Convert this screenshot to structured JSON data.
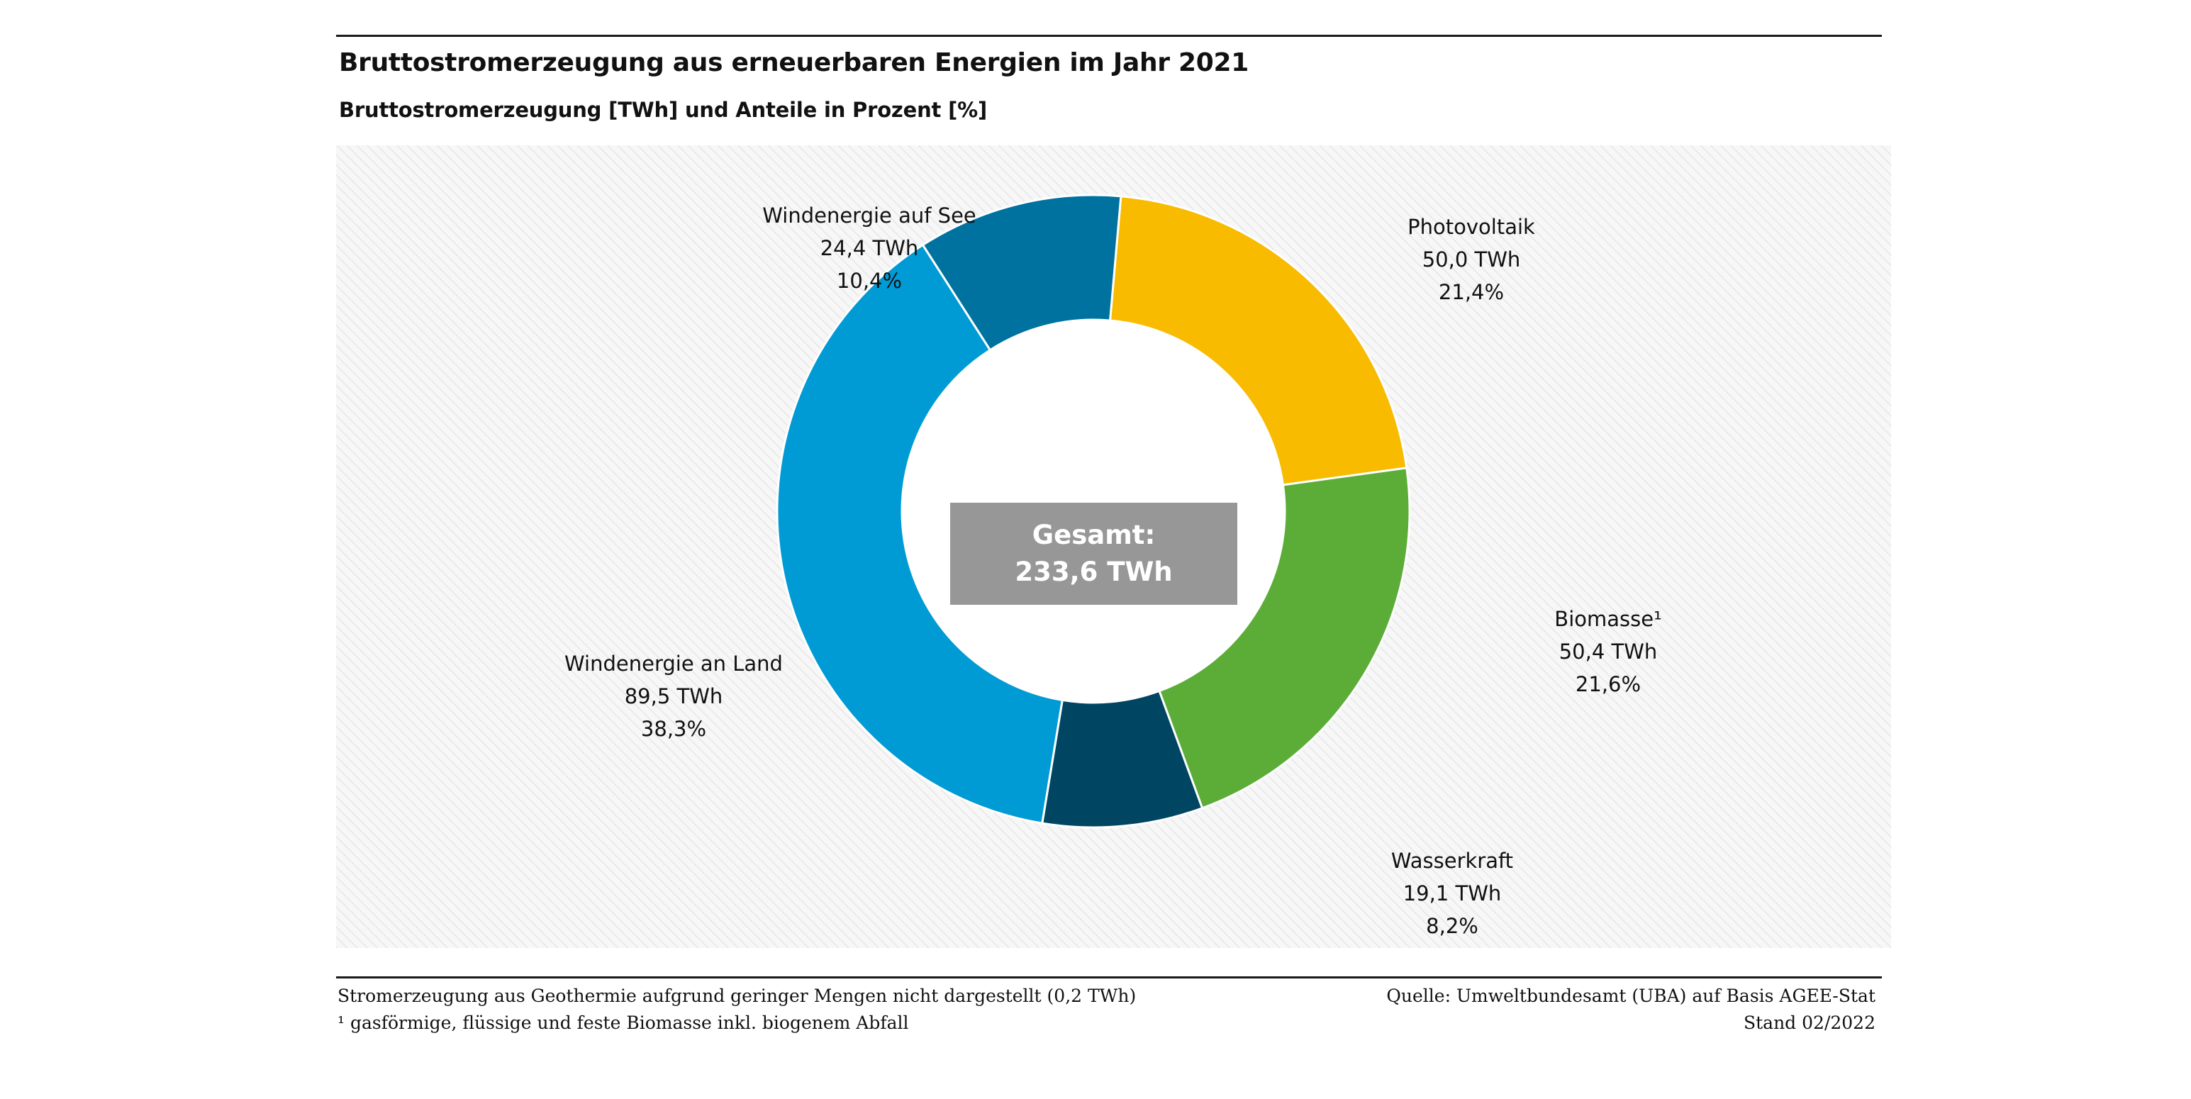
{
  "title": "Bruttostromerzeugung aus erneuerbaren Energien im Jahr 2021",
  "subtitle": "Bruttostromerzeugung  [TWh] und  Anteile in Prozent [%]",
  "total": {
    "label": "Gesamt:",
    "value": "233,6 TWh"
  },
  "colors": {
    "photovoltaik": "#f8bb00",
    "biomasse": "#5cad37",
    "wasserkraft": "#004663",
    "wind_land": "#009bd5",
    "wind_see": "#0072a0",
    "total_box": "#979797"
  },
  "chart_data": {
    "type": "pie",
    "title": "Bruttostromerzeugung aus erneuerbaren Energien im Jahr 2021",
    "unit": "TWh",
    "total": 233.6,
    "categories": [
      "Photovoltaik",
      "Biomasse¹",
      "Wasserkraft",
      "Windenergie an Land",
      "Windenergie auf See"
    ],
    "values": [
      50.0,
      50.4,
      19.1,
      89.5,
      24.4
    ],
    "shares_percent": [
      21.4,
      21.6,
      8.2,
      38.3,
      10.4
    ],
    "segments": [
      {
        "name": "Photovoltaik",
        "value_label": "50,0 TWh",
        "share_label": "21,4%"
      },
      {
        "name": "Biomasse¹",
        "value_label": "50,4 TWh",
        "share_label": "21,6%"
      },
      {
        "name": "Wasserkraft",
        "value_label": "19,1 TWh",
        "share_label": "8,2%"
      },
      {
        "name": "Windenergie an Land",
        "value_label": "89,5 TWh",
        "share_label": "38,3%"
      },
      {
        "name": "Windenergie auf See",
        "value_label": "24,4 TWh",
        "share_label": "10,4%"
      }
    ]
  },
  "footer": {
    "note1": "Stromerzeugung aus Geothermie aufgrund geringer Mengen nicht dargestellt (0,2 TWh)",
    "note2": "¹ gasförmige, flüssige und feste Biomasse inkl. biogenem Abfall",
    "source": "Quelle:  Umweltbundesamt (UBA) auf Basis AGEE-Stat",
    "date": "Stand 02/2022"
  }
}
